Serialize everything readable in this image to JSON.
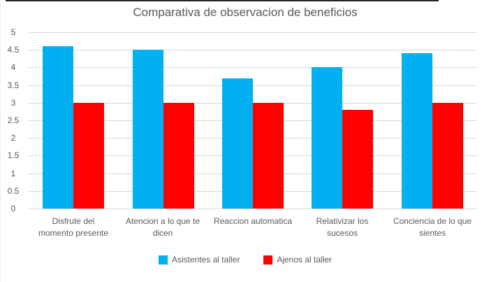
{
  "chart_data": {
    "type": "bar",
    "title": "Comparativa de observacion de beneficios",
    "categories": [
      "Disfrute del momento presente",
      "Atencion a lo que te dicen",
      "Reaccion automatica",
      "Relativizar los sucesos",
      "Conciencia de lo que sientes"
    ],
    "category_lines": [
      [
        "Disfrute del",
        "momento presente"
      ],
      [
        "Atencion a lo que te",
        "dicen"
      ],
      [
        "Reaccion automatica"
      ],
      [
        "Relativizar los",
        "sucesos"
      ],
      [
        "Conciencia de lo que",
        "sientes"
      ]
    ],
    "series": [
      {
        "name": "Asistentes al taller",
        "color": "#00B0F0",
        "values": [
          4.6,
          4.5,
          3.7,
          4.0,
          4.4
        ]
      },
      {
        "name": "Ajenos al taller",
        "color": "#FF0000",
        "values": [
          3.0,
          3.0,
          3.0,
          2.8,
          3.0
        ]
      }
    ],
    "xlabel": "",
    "ylabel": "",
    "ylim": [
      0,
      5
    ],
    "ytick_step": 0.5,
    "yticks": [
      "0",
      "0.5",
      "1",
      "1.5",
      "2",
      "2.5",
      "3",
      "3.5",
      "4",
      "4.5",
      "5"
    ],
    "grid": true,
    "legend_position": "bottom"
  },
  "colors": {
    "text": "#595959",
    "gridline": "#D9D9D9",
    "background": "#FFFFFF",
    "top_edge": "#262626"
  }
}
